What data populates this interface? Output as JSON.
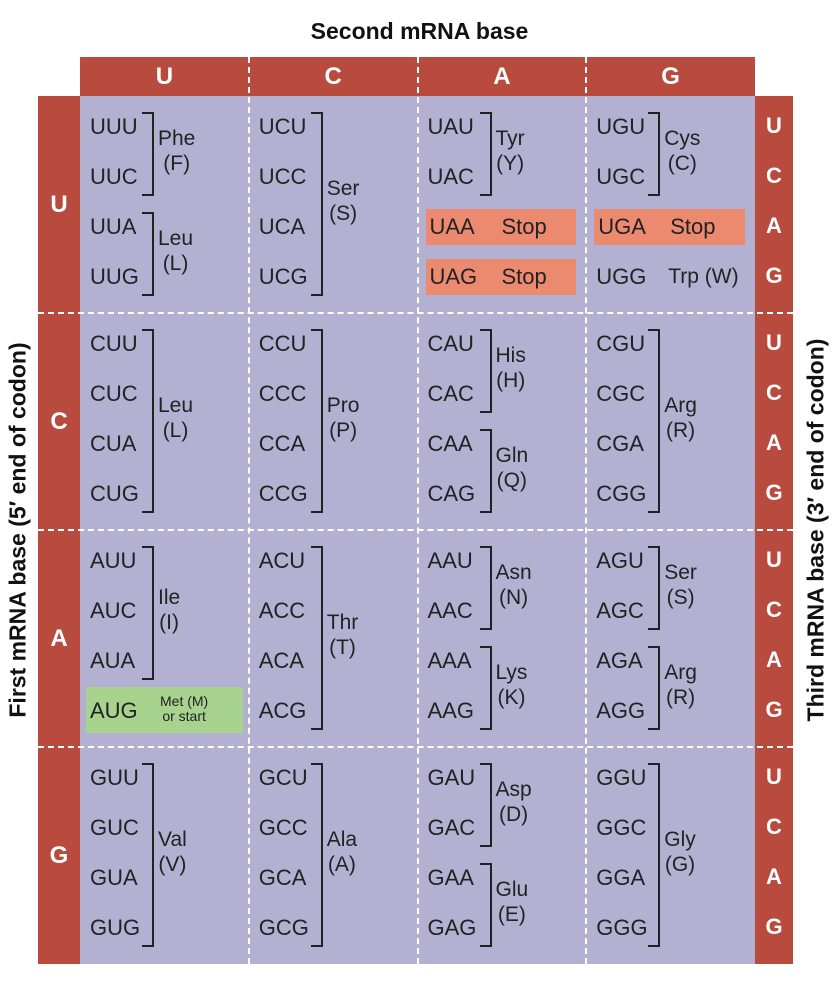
{
  "titles": {
    "top": "Second mRNA base",
    "left": "First mRNA base  (5′ end of codon)",
    "right": "Third mRNA base  (3′ end of codon)"
  },
  "bases": [
    "U",
    "C",
    "A",
    "G"
  ],
  "colors": {
    "bar": "#b84a3e",
    "grid": "#b3b1d2",
    "stop": "#ec8a70",
    "start": "#a8d38e"
  },
  "cells": [
    {
      "row": 0,
      "col": 0,
      "codons": [
        "UUU",
        "UUC",
        "UUA",
        "UUG"
      ],
      "groups": [
        {
          "from": 0,
          "to": 1,
          "label": [
            "Phe",
            "(F)"
          ]
        },
        {
          "from": 2,
          "to": 3,
          "label": [
            "Leu",
            "(L)"
          ]
        }
      ]
    },
    {
      "row": 0,
      "col": 1,
      "codons": [
        "UCU",
        "UCC",
        "UCA",
        "UCG"
      ],
      "groups": [
        {
          "from": 0,
          "to": 3,
          "label": [
            "Ser",
            "(S)"
          ]
        }
      ]
    },
    {
      "row": 0,
      "col": 2,
      "codons": [
        "UAU",
        "UAC",
        "UAA",
        "UAG"
      ],
      "groups": [
        {
          "from": 0,
          "to": 1,
          "label": [
            "Tyr",
            "(Y)"
          ]
        }
      ],
      "stops": [
        {
          "index": 2,
          "text": "Stop"
        },
        {
          "index": 3,
          "text": "Stop"
        }
      ]
    },
    {
      "row": 0,
      "col": 3,
      "codons": [
        "UGU",
        "UGC",
        "UGA",
        "UGG"
      ],
      "groups": [
        {
          "from": 0,
          "to": 1,
          "label": [
            "Cys",
            "(C)"
          ]
        }
      ],
      "stops": [
        {
          "index": 2,
          "text": "Stop"
        }
      ],
      "single": {
        "index": 3,
        "text": "Trp (W)"
      }
    },
    {
      "row": 1,
      "col": 0,
      "codons": [
        "CUU",
        "CUC",
        "CUA",
        "CUG"
      ],
      "groups": [
        {
          "from": 0,
          "to": 3,
          "label": [
            "Leu",
            "(L)"
          ]
        }
      ]
    },
    {
      "row": 1,
      "col": 1,
      "codons": [
        "CCU",
        "CCC",
        "CCA",
        "CCG"
      ],
      "groups": [
        {
          "from": 0,
          "to": 3,
          "label": [
            "Pro",
            "(P)"
          ]
        }
      ]
    },
    {
      "row": 1,
      "col": 2,
      "codons": [
        "CAU",
        "CAC",
        "CAA",
        "CAG"
      ],
      "groups": [
        {
          "from": 0,
          "to": 1,
          "label": [
            "His",
            "(H)"
          ]
        },
        {
          "from": 2,
          "to": 3,
          "label": [
            "Gln",
            "(Q)"
          ]
        }
      ]
    },
    {
      "row": 1,
      "col": 3,
      "codons": [
        "CGU",
        "CGC",
        "CGA",
        "CGG"
      ],
      "groups": [
        {
          "from": 0,
          "to": 3,
          "label": [
            "Arg",
            "(R)"
          ]
        }
      ]
    },
    {
      "row": 2,
      "col": 0,
      "codons": [
        "AUU",
        "AUC",
        "AUA",
        "AUG"
      ],
      "groups": [
        {
          "from": 0,
          "to": 2,
          "label": [
            "Ile",
            "(I)"
          ]
        }
      ],
      "start": {
        "index": 3,
        "text": [
          "Met (M)",
          "or start"
        ]
      }
    },
    {
      "row": 2,
      "col": 1,
      "codons": [
        "ACU",
        "ACC",
        "ACA",
        "ACG"
      ],
      "groups": [
        {
          "from": 0,
          "to": 3,
          "label": [
            "Thr",
            "(T)"
          ]
        }
      ]
    },
    {
      "row": 2,
      "col": 2,
      "codons": [
        "AAU",
        "AAC",
        "AAA",
        "AAG"
      ],
      "groups": [
        {
          "from": 0,
          "to": 1,
          "label": [
            "Asn",
            "(N)"
          ]
        },
        {
          "from": 2,
          "to": 3,
          "label": [
            "Lys",
            "(K)"
          ]
        }
      ]
    },
    {
      "row": 2,
      "col": 3,
      "codons": [
        "AGU",
        "AGC",
        "AGA",
        "AGG"
      ],
      "groups": [
        {
          "from": 0,
          "to": 1,
          "label": [
            "Ser",
            "(S)"
          ]
        },
        {
          "from": 2,
          "to": 3,
          "label": [
            "Arg",
            "(R)"
          ]
        }
      ]
    },
    {
      "row": 3,
      "col": 0,
      "codons": [
        "GUU",
        "GUC",
        "GUA",
        "GUG"
      ],
      "groups": [
        {
          "from": 0,
          "to": 3,
          "label": [
            "Val",
            "(V)"
          ]
        }
      ]
    },
    {
      "row": 3,
      "col": 1,
      "codons": [
        "GCU",
        "GCC",
        "GCA",
        "GCG"
      ],
      "groups": [
        {
          "from": 0,
          "to": 3,
          "label": [
            "Ala",
            "(A)"
          ]
        }
      ]
    },
    {
      "row": 3,
      "col": 2,
      "codons": [
        "GAU",
        "GAC",
        "GAA",
        "GAG"
      ],
      "groups": [
        {
          "from": 0,
          "to": 1,
          "label": [
            "Asp",
            "(D)"
          ]
        },
        {
          "from": 2,
          "to": 3,
          "label": [
            "Glu",
            "(E)"
          ]
        }
      ]
    },
    {
      "row": 3,
      "col": 3,
      "codons": [
        "GGU",
        "GGC",
        "GGA",
        "GGG"
      ],
      "groups": [
        {
          "from": 0,
          "to": 3,
          "label": [
            "Gly",
            "(G)"
          ]
        }
      ]
    }
  ]
}
